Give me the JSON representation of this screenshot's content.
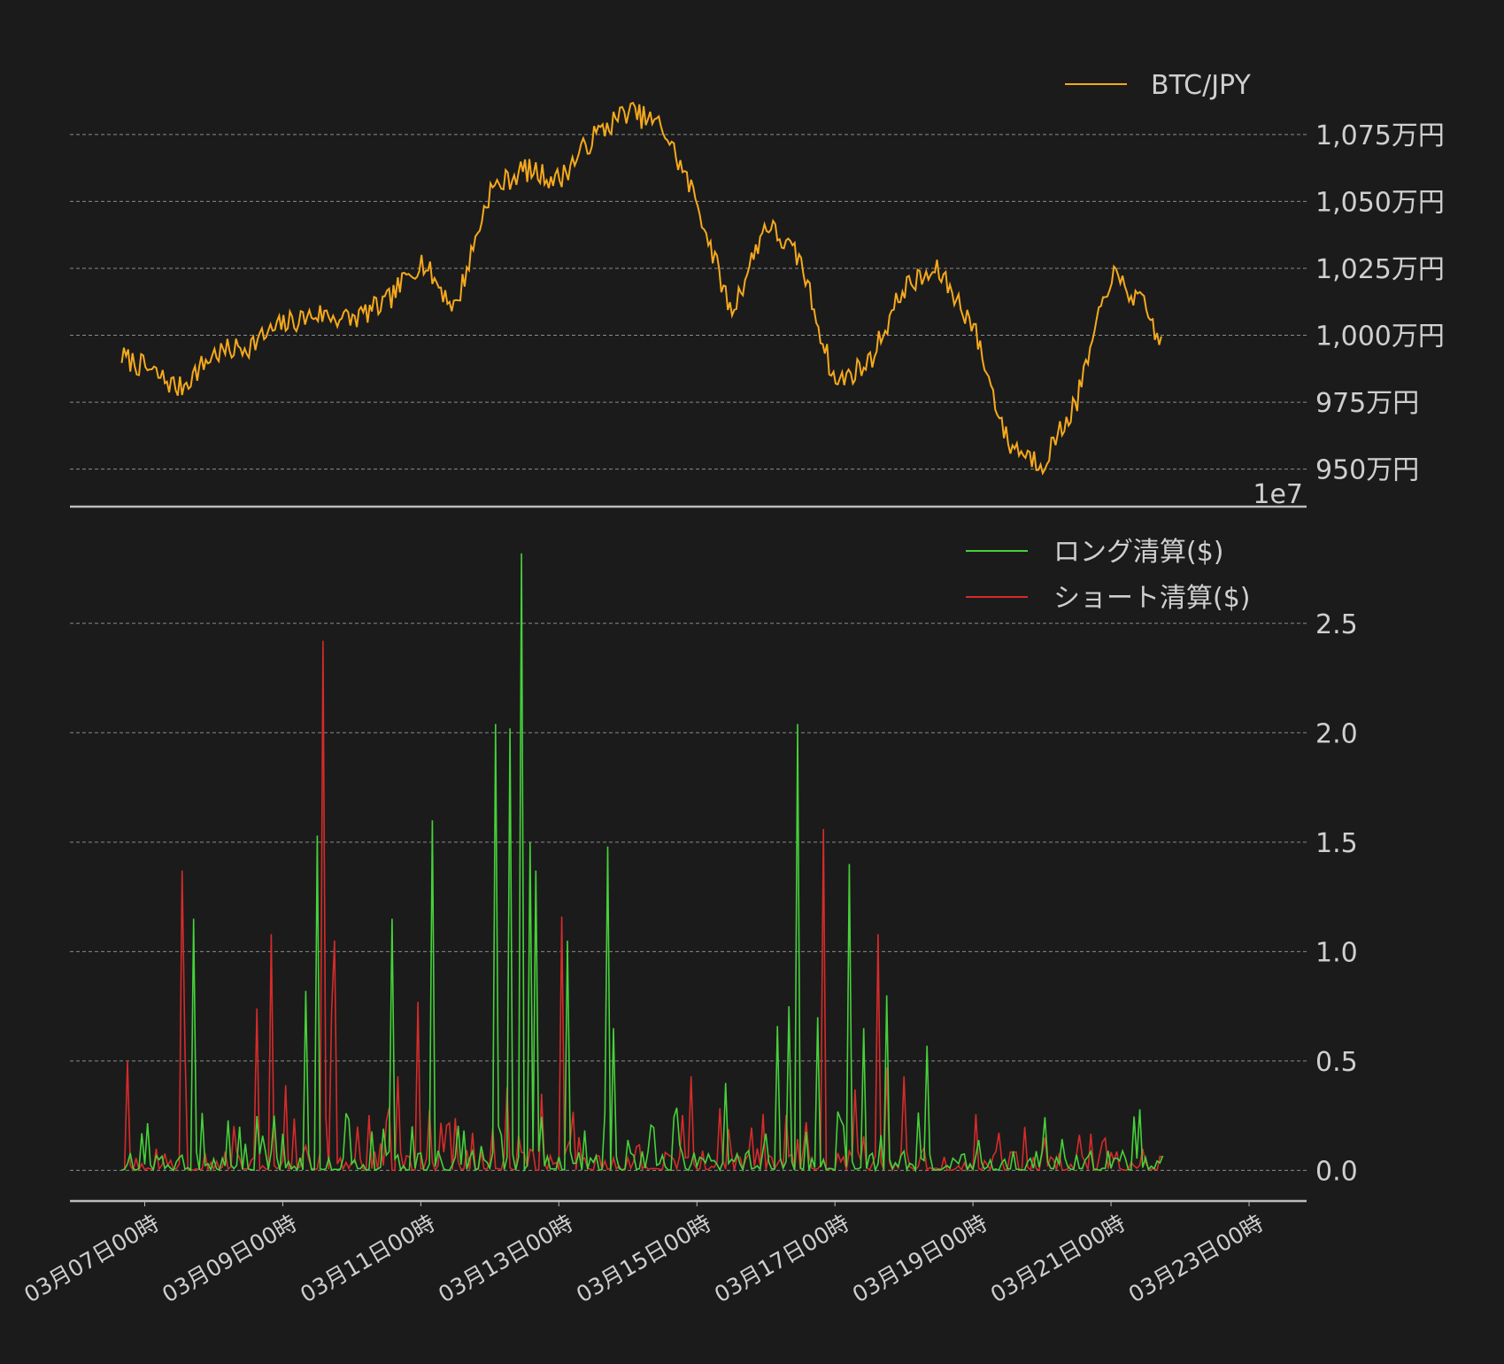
{
  "colors": {
    "background": "#1b1b1b",
    "text": "#cfcfcf",
    "grid": "#8a8a8a",
    "btc_line": "#f5a91d",
    "long_line": "#46d13a",
    "short_line": "#d62b2b"
  },
  "chart_data": [
    {
      "type": "line",
      "panel": "top",
      "series": [
        {
          "name": "BTC/JPY"
        }
      ],
      "x_hours_from": "03月07日00時",
      "x_hours": [
        -8,
        0,
        12,
        24,
        36,
        48,
        60,
        72,
        84,
        96,
        108,
        120,
        132,
        144,
        156,
        168,
        180,
        192,
        204,
        216,
        228,
        240,
        252,
        264,
        276,
        288,
        300,
        312,
        324,
        336,
        348,
        354
      ],
      "values": [
        9920000,
        9880000,
        9800000,
        9930000,
        9960000,
        10040000,
        10080000,
        10060000,
        10120000,
        10280000,
        10100000,
        10540000,
        10620000,
        10580000,
        10740000,
        10840000,
        10780000,
        10500000,
        10080000,
        10420000,
        10280000,
        9820000,
        9900000,
        10180000,
        10240000,
        10040000,
        9600000,
        9520000,
        9750000,
        10230000,
        10100000,
        9950000
      ],
      "ylim": [
        9360000,
        11120000
      ],
      "yticks": [
        9500000,
        9750000,
        10000000,
        10250000,
        10500000,
        10750000
      ],
      "ytick_labels": [
        "950万円",
        "975万円",
        "1,000万円",
        "1,025万円",
        "1,050万円",
        "1,075万円"
      ],
      "offset_label": "1e7",
      "legend": "top-right",
      "grid": true
    },
    {
      "type": "line",
      "panel": "bottom",
      "series": [
        {
          "name": "ロング清算($)",
          "spikes": [
            [
              -1,
              0.17
            ],
            [
              17,
              1.15
            ],
            [
              33,
              0.2
            ],
            [
              45,
              0.25
            ],
            [
              56,
              0.82
            ],
            [
              60,
              1.53
            ],
            [
              86,
              1.15
            ],
            [
              100,
              1.6
            ],
            [
              122,
              2.04
            ],
            [
              127,
              2.02
            ],
            [
              131,
              2.82
            ],
            [
              134,
              1.5
            ],
            [
              136,
              1.37
            ],
            [
              147,
              1.05
            ],
            [
              161,
              1.48
            ],
            [
              163,
              0.65
            ],
            [
              202,
              0.4
            ],
            [
              220,
              0.66
            ],
            [
              224,
              0.75
            ],
            [
              227,
              2.04
            ],
            [
              234,
              0.7
            ],
            [
              245,
              1.4
            ],
            [
              250,
              0.65
            ],
            [
              258,
              0.8
            ],
            [
              272,
              0.57
            ]
          ]
        },
        {
          "name": "ショート清算($)",
          "spikes": [
            [
              -6,
              0.5
            ],
            [
              13,
              1.37
            ],
            [
              14,
              0.55
            ],
            [
              39,
              0.74
            ],
            [
              44,
              1.08
            ],
            [
              49,
              0.39
            ],
            [
              62,
              2.42
            ],
            [
              65,
              0.73
            ],
            [
              66,
              1.05
            ],
            [
              88,
              0.43
            ],
            [
              95,
              0.77
            ],
            [
              126,
              0.38
            ],
            [
              138,
              0.35
            ],
            [
              145,
              1.16
            ],
            [
              190,
              0.43
            ],
            [
              236,
              1.56
            ],
            [
              247,
              0.37
            ],
            [
              255,
              1.08
            ],
            [
              264,
              0.43
            ],
            [
              258,
              0.47
            ]
          ]
        }
      ],
      "ylim": [
        -0.14,
        2.92
      ],
      "yticks": [
        0.0,
        0.5,
        1.0,
        1.5,
        2.0,
        2.5
      ],
      "ytick_labels": [
        "0.0",
        "0.5",
        "1.0",
        "1.5",
        "2.0",
        "2.5"
      ],
      "legend": "top-right",
      "grid": true
    }
  ],
  "x_axis": {
    "tick_labels": [
      "03月07日00時",
      "03月09日00時",
      "03月11日00時",
      "03月13日00時",
      "03月15日00時",
      "03月17日00時",
      "03月19日00時",
      "03月21日00時",
      "03月23日00時"
    ],
    "tick_hours": [
      0,
      48,
      96,
      144,
      192,
      240,
      288,
      336,
      384
    ]
  },
  "legend_labels": {
    "btc": "BTC/JPY",
    "long": "ロング清算($)",
    "short": "ショート清算($)"
  }
}
